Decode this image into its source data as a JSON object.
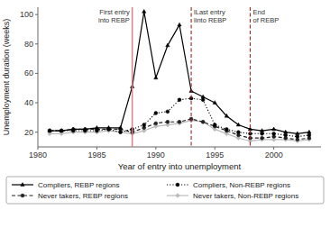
{
  "chart_data": {
    "type": "line",
    "x": [
      1981,
      1982,
      1983,
      1984,
      1985,
      1986,
      1987,
      1988,
      1989,
      1990,
      1991,
      1992,
      1993,
      1994,
      1995,
      1996,
      1997,
      1998,
      1999,
      2000,
      2001,
      2002,
      2003
    ],
    "series": [
      {
        "name": "Compliers, REBP regions",
        "color": "#000000",
        "marker": "triangle",
        "line_style": "solid",
        "values": [
          21,
          21,
          22,
          22,
          23,
          23,
          23,
          51,
          102,
          57,
          79,
          93,
          48,
          44,
          40,
          31,
          25,
          22,
          21,
          22,
          20,
          19,
          20
        ]
      },
      {
        "name": "Compliers, Non-REBP regions",
        "color": "#000000",
        "marker": "circle",
        "line_style": "dotted",
        "values": [
          21,
          21,
          21,
          21,
          21,
          22,
          20,
          22,
          25,
          33,
          34,
          42,
          43,
          42,
          25,
          22,
          20,
          19,
          19,
          19,
          18,
          17,
          18
        ]
      },
      {
        "name": "Never takers, REBP regions",
        "color": "#222222",
        "marker": "circle",
        "line_style": "dashed",
        "values": [
          21,
          21,
          22,
          22,
          22,
          22,
          22,
          20,
          23,
          26,
          27,
          27,
          29,
          27,
          24,
          21,
          18,
          16,
          16,
          17,
          16,
          15,
          16
        ]
      },
      {
        "name": "Never takers, Non-REBP regions",
        "color": "#bbbbbb",
        "marker": "diamond",
        "line_style": "solid",
        "values": [
          19,
          19,
          20,
          20,
          20,
          21,
          20,
          19,
          21,
          24,
          25,
          26,
          28,
          27,
          22,
          19,
          16,
          14,
          15,
          15,
          15,
          14,
          15
        ]
      }
    ],
    "annotations": [
      {
        "x": 1988,
        "label": "First entry\ninto REBP",
        "color": "#e08080",
        "line_style": "solid"
      },
      {
        "x": 1993,
        "label": "lLast entry\nlinto REBP",
        "color": "#aa2222",
        "line_style": "dashed"
      },
      {
        "x": 1998,
        "label": "End\nof REBP",
        "color": "#aa2222",
        "line_style": "dashed"
      }
    ],
    "x_label": "Year of entry into unemployment",
    "y_label": "Unemployment duration (weeks)",
    "xlim": [
      1980,
      2004
    ],
    "ylim": [
      10,
      105
    ],
    "xticks": [
      1980,
      1985,
      1990,
      1995,
      2000
    ],
    "yticks": [
      20,
      40,
      60,
      80,
      100
    ],
    "grid": false,
    "legend": "bottom"
  }
}
